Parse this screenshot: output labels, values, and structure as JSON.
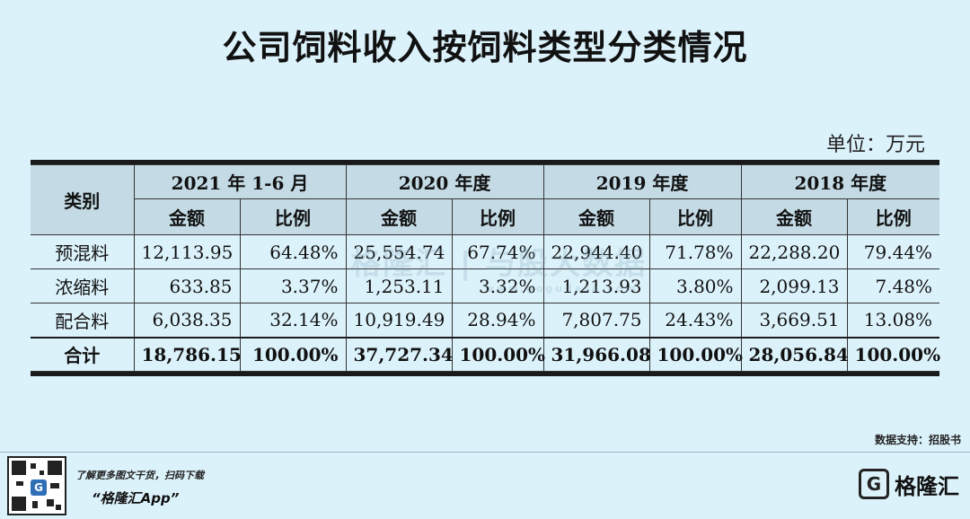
{
  "title": "公司饲料收入按饲料类型分类情况",
  "unit": "单位：万元",
  "table": {
    "corner_header": "类别",
    "periods": [
      "2021 年 1-6 月",
      "2020 年度",
      "2019 年度",
      "2018 年度"
    ],
    "sub_headers": [
      "金额",
      "比例"
    ],
    "rows": [
      {
        "category": "预混料",
        "values": [
          "12,113.95",
          "64.48%",
          "25,554.74",
          "67.74%",
          "22,944.40",
          "71.78%",
          "22,288.20",
          "79.44%"
        ]
      },
      {
        "category": "浓缩料",
        "values": [
          "633.85",
          "3.37%",
          "1,253.11",
          "3.32%",
          "1,213.93",
          "3.80%",
          "2,099.13",
          "7.48%"
        ]
      },
      {
        "category": "配合料",
        "values": [
          "6,038.35",
          "32.14%",
          "10,919.49",
          "28.94%",
          "7,807.75",
          "24.43%",
          "3,669.51",
          "13.08%"
        ]
      }
    ],
    "total": {
      "category": "合计",
      "values": [
        "18,786.15",
        "100.00%",
        "37,727.34",
        "100.00%",
        "31,966.08",
        "100.00%",
        "28,056.84",
        "100.00%"
      ]
    }
  },
  "watermark": {
    "text": "格隆汇 | 与股大数据",
    "sub": "www.gogudata.com"
  },
  "source": "数据支持：招股书",
  "footer": {
    "promo_line1": "了解更多图文干货，扫码下载",
    "promo_line2": "“格隆汇App”",
    "logo_mark": "G",
    "logo_text": "格隆汇"
  },
  "colors": {
    "background": "#dcf2fb",
    "header_fill": "#c4dbe6",
    "rule": "#1a1a1a"
  }
}
